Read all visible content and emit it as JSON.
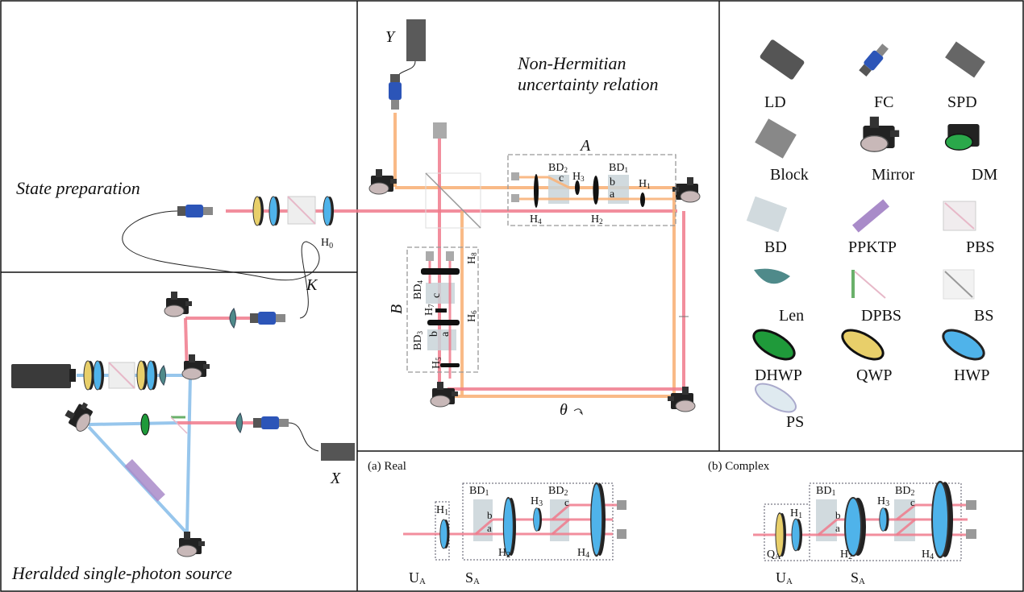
{
  "panels": {
    "state_preparation": {
      "title": "State preparation",
      "h0": {
        "main": "H",
        "sub": "0"
      },
      "k": "K"
    },
    "heralded_source": {
      "title": "Heralded single-photon source",
      "x": "X"
    },
    "uncertainty": {
      "title_line1": "Non-Hermitian",
      "title_line2": "uncertainty relation",
      "y": "Y",
      "theta": "θ",
      "box_a": {
        "label": "A",
        "bd2": {
          "main": "BD",
          "sub": "2"
        },
        "bd1": {
          "main": "BD",
          "sub": "1"
        },
        "h3": {
          "main": "H",
          "sub": "3"
        },
        "h1": {
          "main": "H",
          "sub": "1"
        },
        "h4": {
          "main": "H",
          "sub": "4"
        },
        "h2": {
          "main": "H",
          "sub": "2"
        },
        "a": "a",
        "b": "b",
        "c": "c"
      },
      "box_b": {
        "label": "B",
        "h8": {
          "main": "H",
          "sub": "8"
        },
        "bd4": {
          "main": "BD",
          "sub": "4"
        },
        "h7": {
          "main": "H",
          "sub": "7"
        },
        "h6": {
          "main": "H",
          "sub": "6"
        },
        "bd3": {
          "main": "BD",
          "sub": "3"
        },
        "h5": {
          "main": "H",
          "sub": "5"
        },
        "a": "a",
        "b": "b",
        "c": "c"
      }
    },
    "legend": {
      "items": [
        {
          "label": "LD",
          "icon": "laser-diode-icon"
        },
        {
          "label": "FC",
          "icon": "fiber-coupler-icon"
        },
        {
          "label": "SPD",
          "icon": "single-photon-detector-icon"
        },
        {
          "label": "Block",
          "icon": "beam-block-icon"
        },
        {
          "label": "Mirror",
          "icon": "mirror-icon"
        },
        {
          "label": "DM",
          "icon": "dichroic-mirror-icon"
        },
        {
          "label": "BD",
          "icon": "beam-displacer-icon"
        },
        {
          "label": "PPKTP",
          "icon": "ppktp-crystal-icon"
        },
        {
          "label": "PBS",
          "icon": "polarizing-beam-splitter-icon"
        },
        {
          "label": "Len",
          "icon": "lens-icon"
        },
        {
          "label": "DPBS",
          "icon": "dichroic-pbs-icon"
        },
        {
          "label": "BS",
          "icon": "beam-splitter-icon"
        },
        {
          "label": "DHWP",
          "icon": "dichroic-hwp-icon"
        },
        {
          "label": "QWP",
          "icon": "quarter-wave-plate-icon"
        },
        {
          "label": "HWP",
          "icon": "half-wave-plate-icon"
        },
        {
          "label": "PS",
          "icon": "phase-shifter-icon"
        }
      ]
    },
    "real": {
      "title": "(a) Real",
      "h1": {
        "main": "H",
        "sub": "1"
      },
      "bd1": {
        "main": "BD",
        "sub": "1"
      },
      "h3": {
        "main": "H",
        "sub": "3"
      },
      "bd2": {
        "main": "BD",
        "sub": "2"
      },
      "h2": {
        "main": "H",
        "sub": "2"
      },
      "h4": {
        "main": "H",
        "sub": "4"
      },
      "a": "a",
      "b": "b",
      "c": "c",
      "ua": {
        "main": "U",
        "sub": "A"
      },
      "sa": {
        "main": "S",
        "sub": "A"
      }
    },
    "complex": {
      "title": "(b) Complex",
      "h1": {
        "main": "H",
        "sub": "1"
      },
      "qa": {
        "main": "Q",
        "sub": "A"
      },
      "bd1": {
        "main": "BD",
        "sub": "1"
      },
      "h3": {
        "main": "H",
        "sub": "3"
      },
      "bd2": {
        "main": "BD",
        "sub": "2"
      },
      "h2": {
        "main": "H",
        "sub": "2"
      },
      "h4": {
        "main": "H",
        "sub": "4"
      },
      "a": "a",
      "b": "b",
      "c": "c",
      "ua": {
        "main": "U",
        "sub": "A"
      },
      "sa": {
        "main": "S",
        "sub": "A"
      }
    }
  },
  "colors": {
    "red_beam": "#f07a8c",
    "orange_beam": "#f8b27a",
    "blue_beam": "#8cc0ea",
    "hwp": "#4fb3ea",
    "qwp": "#e8cf6a",
    "dhwp": "#1f9a3a",
    "bd": "#c9d3d8",
    "ppktp": "#a98bc9"
  }
}
